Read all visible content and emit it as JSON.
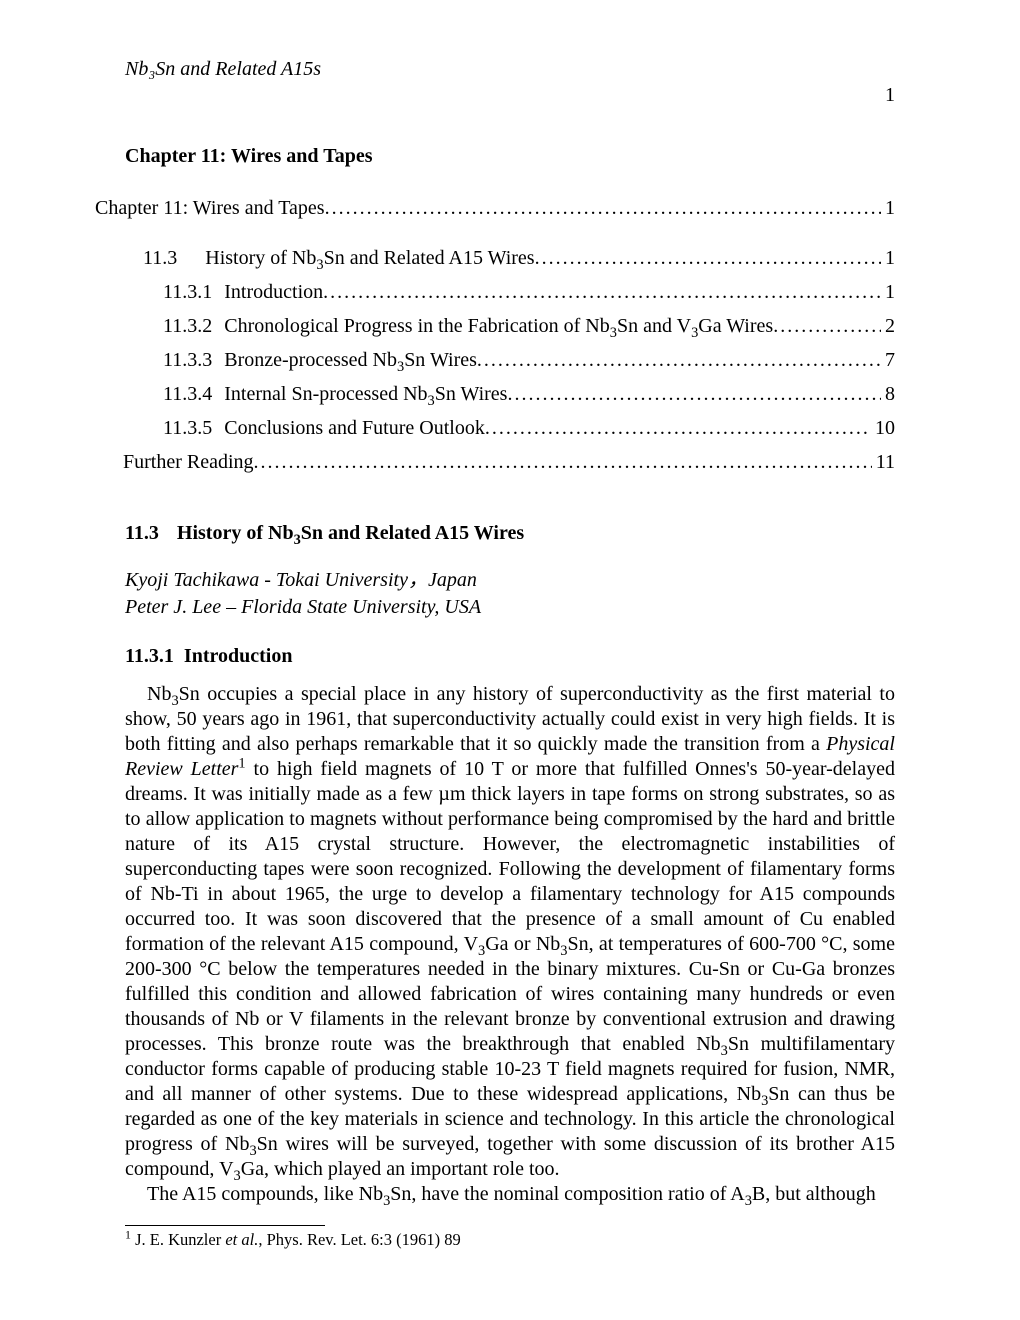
{
  "running_head": "Nb₃Sn and Related A15s",
  "page_number": "1",
  "chapter_title": "Chapter 11: Wires and Tapes",
  "toc": [
    {
      "indent": "toc-indent-0",
      "num": "",
      "label_html": "Chapter 11: Wires and Tapes",
      "page": "1"
    },
    {
      "indent": "toc-indent-1",
      "num": "11.3",
      "num_class": "toc-num-wide",
      "label_html": "History of Nb<sub>3</sub>Sn and Related A15 Wires",
      "page": "1"
    },
    {
      "indent": "toc-indent-2",
      "num": "11.3.1",
      "num_class": "toc-num",
      "label_html": "Introduction",
      "page": "1"
    },
    {
      "indent": "toc-indent-2",
      "num": "11.3.2",
      "num_class": "toc-num",
      "label_html": "Chronological Progress in the Fabrication of Nb<sub>3</sub>Sn and V<sub>3</sub>Ga Wires",
      "page": "2"
    },
    {
      "indent": "toc-indent-2",
      "num": "11.3.3",
      "num_class": "toc-num",
      "label_html": "Bronze-processed Nb<sub>3</sub>Sn Wires",
      "page": "7"
    },
    {
      "indent": "toc-indent-2",
      "num": "11.3.4",
      "num_class": "toc-num",
      "label_html": "Internal Sn-processed Nb<sub>3</sub>Sn Wires",
      "page": "8"
    },
    {
      "indent": "toc-indent-2",
      "num": "11.3.5",
      "num_class": "toc-num",
      "label_html": "Conclusions and Future Outlook",
      "page": "10"
    },
    {
      "indent": "toc-indent-0b",
      "num": "",
      "label_html": "Further Reading",
      "page": "11"
    }
  ],
  "section": {
    "num": "11.3",
    "title_html": "History of Nb<sub>3</sub>Sn and Related A15 Wires"
  },
  "authors_html": "Kyoji Tachikawa - Tokai University，Japan<br>Peter J. Lee – Florida State University, USA",
  "subsection": {
    "num": "11.3.1",
    "title": "Introduction"
  },
  "paragraphs_html": [
    "Nb<sub>3</sub>Sn occupies a special place in any history of superconductivity as the first material to show, 50 years ago in 1961, that superconductivity actually could exist in very high fields. It is both fitting and also perhaps remarkable that it so quickly made the transition from a <span class=\"ital\">Physical Review Letter</span><sup>1</sup> to high field magnets of 10 T or more that fulfilled Onnes's 50-year-delayed dreams. It was initially made as a few µm thick layers in tape forms on strong substrates, so as to allow application to magnets without performance being compromised by the hard and brittle nature of its A15 crystal structure. However, the electromagnetic instabilities of superconducting tapes were soon recognized. Following the development of filamentary forms of Nb-Ti in about 1965, the urge to develop a filamentary technology for A15 compounds occurred too. It was soon discovered that the presence of a small amount of Cu enabled formation of the relevant A15 compound, V<sub>3</sub>Ga or Nb<sub>3</sub>Sn, at temperatures of 600-700 °C, some 200-300 °C below the temperatures needed in the binary mixtures. Cu-Sn or Cu-Ga bronzes fulfilled this condition and allowed fabrication of wires containing many hundreds or even thousands of Nb or V filaments in the relevant bronze by conventional extrusion and drawing processes. This bronze route was the breakthrough that enabled Nb<sub>3</sub>Sn multifilamentary conductor forms capable of producing stable 10-23 T field magnets required for fusion, NMR, and all manner of other systems. Due to these widespread applications, Nb<sub>3</sub>Sn can thus be regarded as one of the key materials in science and technology. In this article the chronological progress of Nb<sub>3</sub>Sn wires will be surveyed, together with some discussion of its brother A15 compound, V<sub>3</sub>Ga, which played an important role too.",
    "The A15 compounds, like Nb<sub>3</sub>Sn, have the nominal composition ratio of A<sub>3</sub>B, but although"
  ],
  "footnote_html": "<sup>1</sup> J. E. Kunzler <span class=\"ital\">et al.</span>, Phys. Rev. Let. 6:3 (1961) 89"
}
